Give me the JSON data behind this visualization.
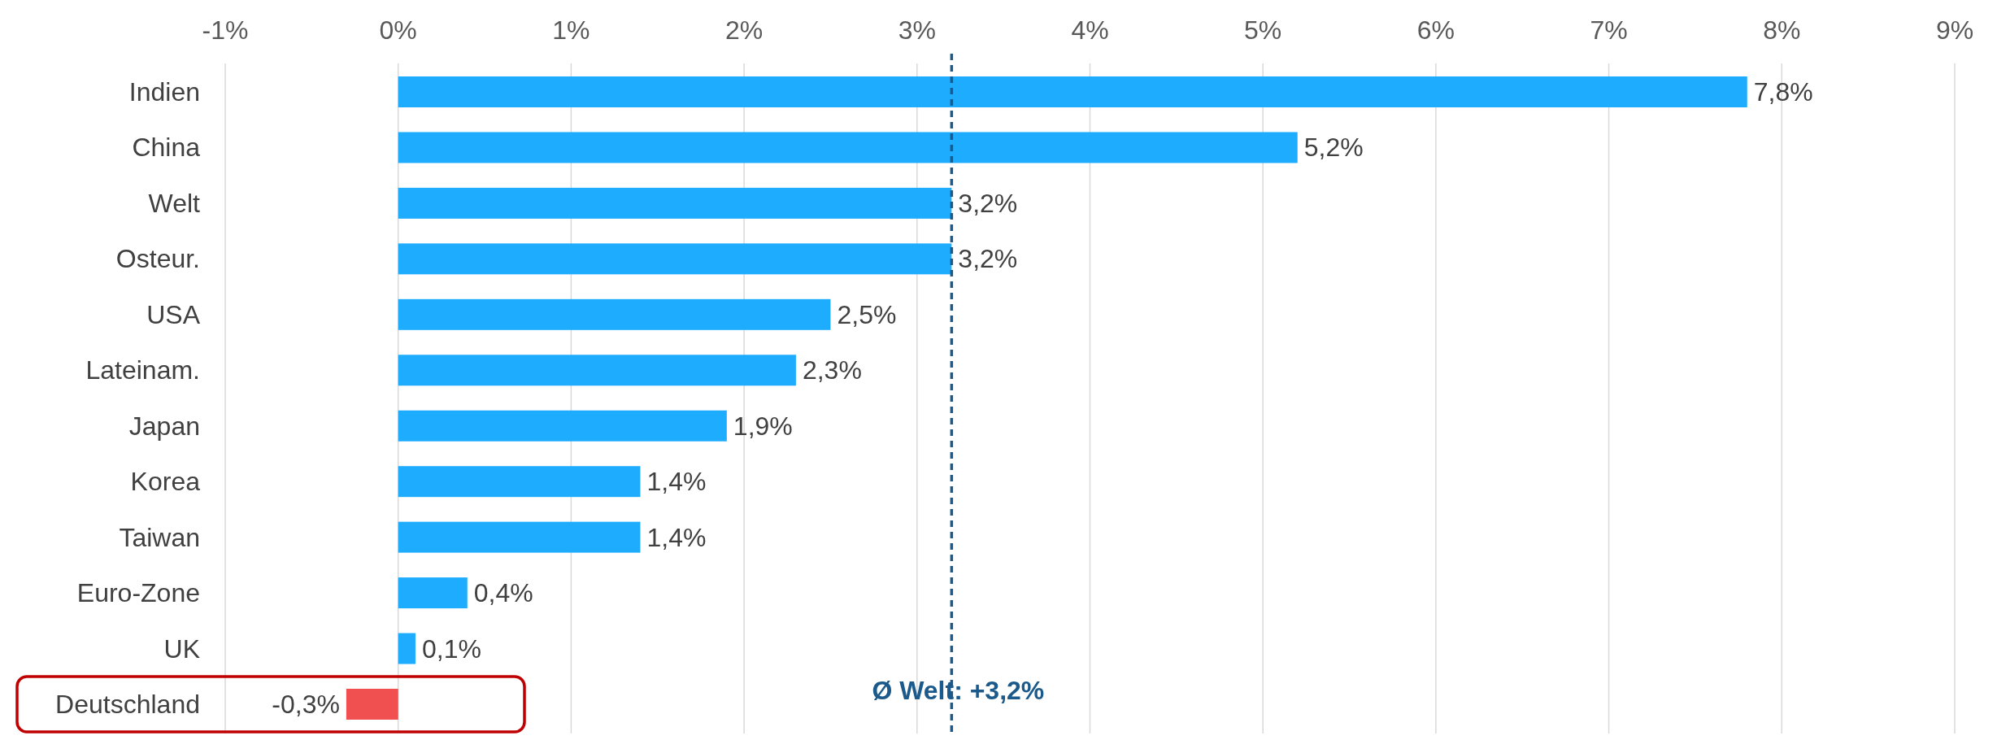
{
  "chart_data": {
    "type": "bar",
    "orientation": "horizontal",
    "categories": [
      "Indien",
      "China",
      "Welt",
      "Osteur.",
      "USA",
      "Lateinam.",
      "Japan",
      "Korea",
      "Taiwan",
      "Euro-Zone",
      "UK",
      "Deutschland"
    ],
    "values": [
      7.8,
      5.2,
      3.2,
      3.2,
      2.5,
      2.3,
      1.9,
      1.4,
      1.4,
      0.4,
      0.1,
      -0.3
    ],
    "colors": [
      "#1eacff",
      "#1eacff",
      "#1eacff",
      "#1eacff",
      "#1eacff",
      "#1eacff",
      "#1eacff",
      "#1eacff",
      "#1eacff",
      "#1eacff",
      "#1eacff",
      "#f0504f"
    ],
    "value_labels": [
      "7,8%",
      "5,2%",
      "3,2%",
      "3,2%",
      "2,5%",
      "2,3%",
      "1,9%",
      "1,4%",
      "1,4%",
      "0,4%",
      "0,1%",
      "-0,3%"
    ],
    "xlim": [
      -1,
      9
    ],
    "xticks": [
      {
        "value": -1,
        "label": "-1%"
      },
      {
        "value": 0,
        "label": "0%"
      },
      {
        "value": 1,
        "label": "1%"
      },
      {
        "value": 2,
        "label": "2%"
      },
      {
        "value": 3,
        "label": "3%"
      },
      {
        "value": 4,
        "label": "4%"
      },
      {
        "value": 5,
        "label": "5%"
      },
      {
        "value": 6,
        "label": "6%"
      },
      {
        "value": 7,
        "label": "7%"
      },
      {
        "value": 8,
        "label": "8%"
      },
      {
        "value": 9,
        "label": "9%"
      }
    ],
    "grid": "x",
    "ref_lines": [
      {
        "axis": "x",
        "value": 3.2,
        "label": "Ø Welt: +3,2%",
        "color": "#1b5a8a",
        "line_style": "dashed"
      }
    ]
  }
}
